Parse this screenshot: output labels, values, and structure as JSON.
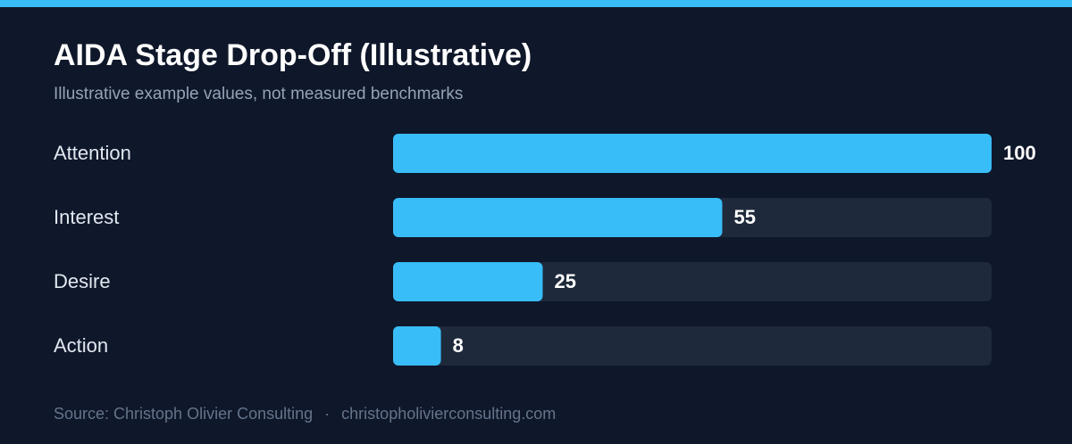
{
  "chart_data": {
    "type": "bar",
    "orientation": "horizontal",
    "title": "AIDA Stage Drop-Off (Illustrative)",
    "subtitle": "Illustrative example values, not measured benchmarks",
    "categories": [
      "Attention",
      "Interest",
      "Desire",
      "Action"
    ],
    "values": [
      100,
      55,
      25,
      8
    ],
    "color": "#38bdf8",
    "xlim": [
      0,
      100
    ]
  },
  "footer": {
    "source": "Source: Christoph Olivier Consulting",
    "separator": "·",
    "website": "christopholivierconsulting.com"
  }
}
